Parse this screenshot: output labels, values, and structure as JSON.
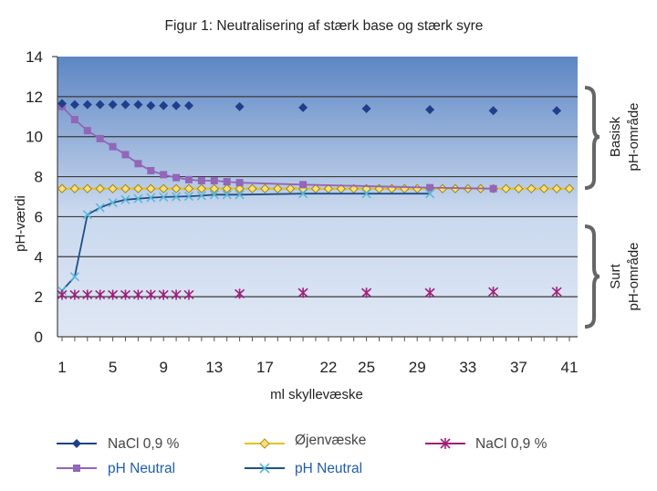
{
  "chart_data": {
    "type": "line",
    "title": "Figur 1: Neutralisering af stærk base og stærk syre",
    "xlabel": "ml skyllevæske",
    "ylabel": "pH-værdi",
    "xlim": [
      1,
      41
    ],
    "ylim": [
      0,
      14
    ],
    "x_ticks": [
      "1",
      "5",
      "9",
      "13",
      "17",
      "22",
      "25",
      "29",
      "33",
      "37",
      "41"
    ],
    "y_ticks": [
      "0",
      "2",
      "4",
      "6",
      "8",
      "10",
      "12",
      "14"
    ],
    "grid": true,
    "legend_position": "bottom",
    "regions": [
      {
        "label_line1": "Basisk",
        "label_line2": "pH-område",
        "from": 7.3,
        "to": 12.9
      },
      {
        "label_line1": "Surt",
        "label_line2": "pH-område",
        "from": 1.9,
        "to": 7.0
      }
    ],
    "series": [
      {
        "name": "NaCl 0,9 %",
        "color": "#1f3f8a",
        "marker": "diamond",
        "line": false,
        "x": [
          1,
          2,
          3,
          4,
          5,
          6,
          7,
          8,
          9,
          10,
          11,
          15,
          20,
          25,
          30,
          35,
          40
        ],
        "y": [
          11.65,
          11.6,
          11.6,
          11.6,
          11.6,
          11.6,
          11.6,
          11.55,
          11.55,
          11.55,
          11.55,
          11.5,
          11.45,
          11.4,
          11.35,
          11.3,
          11.3
        ]
      },
      {
        "name": "Øjenvæske",
        "color": "#e8c020",
        "marker": "diamond-hollow",
        "line": true,
        "x": [
          1,
          2,
          3,
          4,
          5,
          6,
          7,
          8,
          9,
          10,
          11,
          12,
          13,
          14,
          15,
          16,
          17,
          18,
          19,
          20,
          21,
          22,
          23,
          24,
          25,
          26,
          27,
          28,
          29,
          30,
          31,
          32,
          33,
          34,
          35,
          36,
          37,
          38,
          39,
          40,
          41
        ],
        "y": [
          7.4,
          7.4,
          7.4,
          7.4,
          7.4,
          7.4,
          7.4,
          7.4,
          7.4,
          7.4,
          7.4,
          7.4,
          7.4,
          7.4,
          7.4,
          7.4,
          7.4,
          7.4,
          7.4,
          7.4,
          7.4,
          7.4,
          7.4,
          7.4,
          7.4,
          7.4,
          7.4,
          7.4,
          7.4,
          7.4,
          7.4,
          7.4,
          7.4,
          7.4,
          7.4,
          7.4,
          7.4,
          7.4,
          7.4,
          7.4,
          7.4
        ]
      },
      {
        "name": "NaCl 0,9 %",
        "color": "#a0207a",
        "marker": "asterisk",
        "line": false,
        "x": [
          1,
          2,
          3,
          4,
          5,
          6,
          7,
          8,
          9,
          10,
          11,
          15,
          20,
          25,
          30,
          35,
          40
        ],
        "y": [
          2.1,
          2.1,
          2.1,
          2.1,
          2.1,
          2.1,
          2.1,
          2.1,
          2.1,
          2.1,
          2.1,
          2.15,
          2.2,
          2.2,
          2.2,
          2.25,
          2.25
        ]
      },
      {
        "name": "pH Neutral",
        "color": "#9266b8",
        "marker": "square",
        "line": true,
        "x": [
          1,
          2,
          3,
          4,
          5,
          6,
          7,
          8,
          9,
          10,
          11,
          12,
          13,
          14,
          15,
          20,
          30,
          35
        ],
        "y": [
          11.5,
          10.85,
          10.3,
          9.9,
          9.5,
          9.1,
          8.65,
          8.3,
          8.1,
          7.95,
          7.85,
          7.8,
          7.8,
          7.75,
          7.7,
          7.6,
          7.45,
          7.4
        ]
      },
      {
        "name": "pH Neutral",
        "color": "#1f4f8a",
        "marker_color": "#5ab8d8",
        "marker": "cross",
        "line": true,
        "x": [
          1,
          2,
          3,
          4,
          5,
          6,
          7,
          8,
          9,
          10,
          11,
          12,
          13,
          14,
          15,
          20,
          25,
          30
        ],
        "y": [
          2.3,
          3.0,
          6.1,
          6.45,
          6.7,
          6.85,
          6.9,
          6.95,
          6.98,
          7.0,
          7.02,
          7.05,
          7.1,
          7.1,
          7.1,
          7.15,
          7.15,
          7.15
        ]
      }
    ]
  }
}
